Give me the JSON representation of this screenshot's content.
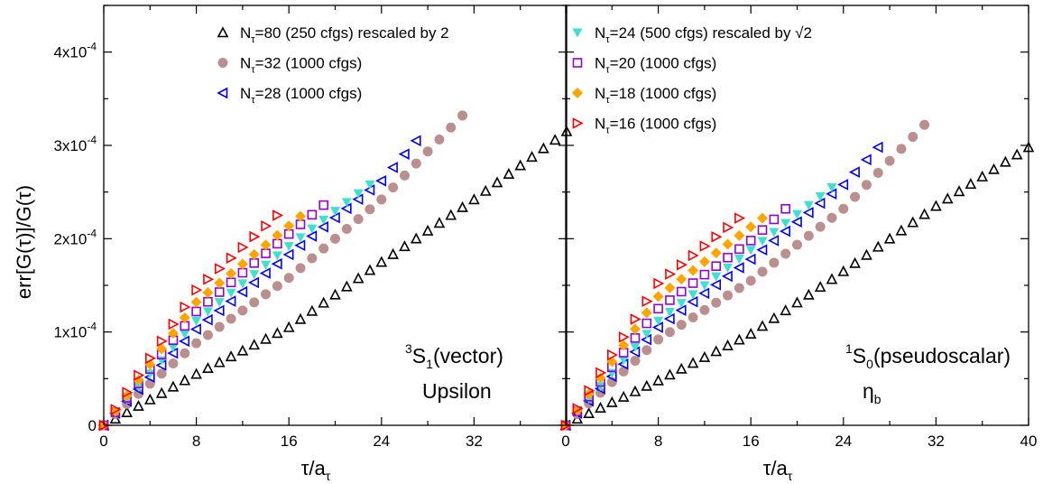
{
  "figure": {
    "y_axis_label": "err[G(τ)]/G(τ)",
    "x_axis_label_main": "τ/a",
    "x_axis_label_sub": "τ"
  },
  "chart_data": [
    {
      "type": "scatter",
      "panel": "left",
      "xlim": [
        0,
        40
      ],
      "ylim": [
        0,
        0.00045
      ],
      "x_ticks": [
        0,
        8,
        16,
        24,
        32
      ],
      "y_ticks": [
        0,
        0.0001,
        0.0002,
        0.0003,
        0.0004
      ],
      "y_tick_labels": [
        {
          "value": 0,
          "base": "0",
          "exp": ""
        },
        {
          "value": 0.0001,
          "base": "1x10",
          "exp": "-4"
        },
        {
          "value": 0.0002,
          "base": "2x10",
          "exp": "-4"
        },
        {
          "value": 0.0003,
          "base": "3x10",
          "exp": "-4"
        },
        {
          "value": 0.0004,
          "base": "4x10",
          "exp": "-4"
        }
      ],
      "annotation": {
        "line1_sup": "3",
        "line1_main": "S",
        "line1_sub": "1",
        "line1_tail": "(vector)",
        "line2": "Upsilon"
      },
      "legend": {
        "placement": "top-left",
        "entries": [
          {
            "pre": "N",
            "sub": "τ",
            "post": "=80 (250 cfgs) rescaled by 2",
            "series": 0
          },
          {
            "pre": "N",
            "sub": "τ",
            "post": "=32 (1000 cfgs)",
            "series": 1
          },
          {
            "pre": "N",
            "sub": "τ",
            "post": "=28 (1000 cfgs)",
            "series": 2
          }
        ]
      },
      "series": [
        {
          "key": "NT80",
          "marker": "triangle-up",
          "color": "#000000",
          "filled": false,
          "xmax": 40,
          "points": [
            [
              0,
              0
            ],
            [
              1,
              7e-06
            ],
            [
              8,
              5.5e-05
            ],
            [
              16,
              0.000105
            ],
            [
              24,
              0.000175
            ],
            [
              32,
              0.000242
            ],
            [
              40,
              0.000315
            ]
          ]
        },
        {
          "key": "NT32",
          "marker": "circle",
          "color": "#bc8f8f",
          "filled": true,
          "xmax": 31,
          "points": [
            [
              0,
              0
            ],
            [
              1,
              1.2e-05
            ],
            [
              8,
              8.8e-05
            ],
            [
              16,
              0.000158
            ],
            [
              24,
              0.000242
            ],
            [
              31,
              0.000332
            ]
          ]
        },
        {
          "key": "NT28",
          "marker": "triangle-left",
          "color": "#0000ff",
          "filled": false,
          "xmax": 27,
          "points": [
            [
              0,
              0
            ],
            [
              1,
              1.3e-05
            ],
            [
              8,
              0.000103
            ],
            [
              16,
              0.000183
            ],
            [
              24,
              0.000262
            ],
            [
              27,
              0.000305
            ]
          ]
        },
        {
          "key": "NT24",
          "marker": "triangle-down",
          "color": "#40e0d0",
          "filled": true,
          "xmax": 23,
          "points": [
            [
              0,
              0
            ],
            [
              1,
              1.3e-05
            ],
            [
              8,
              0.000112
            ],
            [
              16,
              0.000192
            ],
            [
              23,
              0.000258
            ]
          ]
        },
        {
          "key": "NT20",
          "marker": "square",
          "color": "#9400d3",
          "filled": false,
          "xmax": 19,
          "points": [
            [
              0,
              0
            ],
            [
              1,
              1.4e-05
            ],
            [
              8,
              0.000122
            ],
            [
              16,
              0.000205
            ],
            [
              19,
              0.000236
            ]
          ]
        },
        {
          "key": "NT18",
          "marker": "diamond",
          "color": "#ffa500",
          "filled": true,
          "xmax": 17,
          "points": [
            [
              0,
              0
            ],
            [
              1,
              1.5e-05
            ],
            [
              8,
              0.000132
            ],
            [
              17,
              0.000224
            ]
          ]
        },
        {
          "key": "NT16",
          "marker": "triangle-right",
          "color": "#ff0000",
          "filled": false,
          "xmax": 15,
          "points": [
            [
              0,
              0
            ],
            [
              1,
              1.7e-05
            ],
            [
              8,
              0.000145
            ],
            [
              15,
              0.000225
            ]
          ]
        }
      ]
    },
    {
      "type": "scatter",
      "panel": "right",
      "xlim": [
        0,
        40
      ],
      "ylim": [
        0,
        0.00045
      ],
      "x_ticks": [
        0,
        8,
        16,
        24,
        32,
        40
      ],
      "annotation": {
        "line1_sup": "1",
        "line1_main": "S",
        "line1_sub": "0",
        "line1_tail": "(pseudoscalar)",
        "line2_main": "η",
        "line2_sub": "b"
      },
      "legend": {
        "placement": "top-left",
        "entries": [
          {
            "pre": "N",
            "sub": "τ",
            "post": "=24 (500 cfgs) rescaled by √2",
            "series": 3
          },
          {
            "pre": "N",
            "sub": "τ",
            "post": "=20 (1000 cfgs)",
            "series": 4
          },
          {
            "pre": "N",
            "sub": "τ",
            "post": "=18 (1000 cfgs)",
            "series": 5
          },
          {
            "pre": "N",
            "sub": "τ",
            "post": "=16 (1000 cfgs)",
            "series": 6
          }
        ]
      },
      "series": [
        {
          "key": "NT80",
          "marker": "triangle-up",
          "color": "#000000",
          "filled": false,
          "xmax": 40,
          "points": [
            [
              0,
              0
            ],
            [
              1,
              7e-06
            ],
            [
              8,
              4.8e-05
            ],
            [
              16,
              9.8e-05
            ],
            [
              24,
              0.000165
            ],
            [
              32,
              0.000235
            ],
            [
              40,
              0.000298
            ]
          ]
        },
        {
          "key": "NT32",
          "marker": "circle",
          "color": "#bc8f8f",
          "filled": true,
          "xmax": 31,
          "points": [
            [
              0,
              0
            ],
            [
              1,
              1.2e-05
            ],
            [
              8,
              9.2e-05
            ],
            [
              16,
              0.000155
            ],
            [
              24,
              0.000232
            ],
            [
              31,
              0.000322
            ]
          ]
        },
        {
          "key": "NT28",
          "marker": "triangle-left",
          "color": "#0000ff",
          "filled": false,
          "xmax": 27,
          "points": [
            [
              0,
              0
            ],
            [
              1,
              1.3e-05
            ],
            [
              8,
              0.000105
            ],
            [
              16,
              0.000178
            ],
            [
              24,
              0.000258
            ],
            [
              27,
              0.000298
            ]
          ]
        },
        {
          "key": "NT24",
          "marker": "triangle-down",
          "color": "#40e0d0",
          "filled": true,
          "xmax": 23,
          "points": [
            [
              0,
              0
            ],
            [
              1,
              1.4e-05
            ],
            [
              8,
              0.000112
            ],
            [
              16,
              0.000188
            ],
            [
              23,
              0.000255
            ]
          ]
        },
        {
          "key": "NT20",
          "marker": "square",
          "color": "#9400d3",
          "filled": false,
          "xmax": 19,
          "points": [
            [
              0,
              0
            ],
            [
              1,
              1.5e-05
            ],
            [
              8,
              0.000125
            ],
            [
              16,
              0.000198
            ],
            [
              19,
              0.000232
            ]
          ]
        },
        {
          "key": "NT18",
          "marker": "diamond",
          "color": "#ffa500",
          "filled": true,
          "xmax": 17,
          "points": [
            [
              0,
              0
            ],
            [
              1,
              1.6e-05
            ],
            [
              8,
              0.000138
            ],
            [
              17,
              0.000222
            ]
          ]
        },
        {
          "key": "NT16",
          "marker": "triangle-right",
          "color": "#ff0000",
          "filled": false,
          "xmax": 15,
          "points": [
            [
              0,
              0
            ],
            [
              1,
              1.8e-05
            ],
            [
              8,
              0.000152
            ],
            [
              15,
              0.000222
            ]
          ]
        }
      ]
    }
  ]
}
